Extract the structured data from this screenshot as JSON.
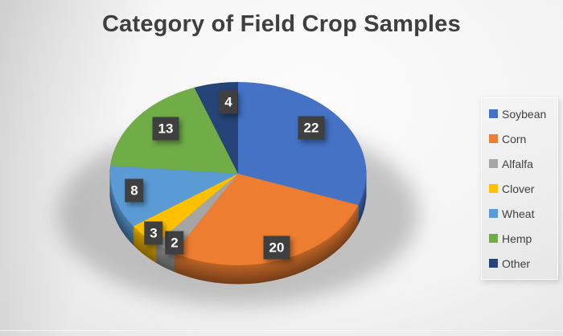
{
  "chart_data": {
    "type": "pie",
    "style": "3d-pie",
    "title": "Category of Field Crop Samples",
    "categories": [
      "Soybean",
      "Corn",
      "Alfalfa",
      "Clover",
      "Wheat",
      "Hemp",
      "Other"
    ],
    "values": [
      22,
      20,
      2,
      3,
      8,
      13,
      4
    ],
    "colors": [
      "#4472C4",
      "#ED7D31",
      "#A5A5A5",
      "#FFC000",
      "#5B9BD5",
      "#70AD47",
      "#264478"
    ],
    "legend_position": "right",
    "start_angle_deg": 0,
    "direction": "clockwise",
    "data_labels_shown": true,
    "data_label_box_color": "#3F3F3F",
    "data_label_text_color": "#FFFFFF",
    "title_color": "#3F3F3F",
    "legend_text_color": "#404040"
  }
}
